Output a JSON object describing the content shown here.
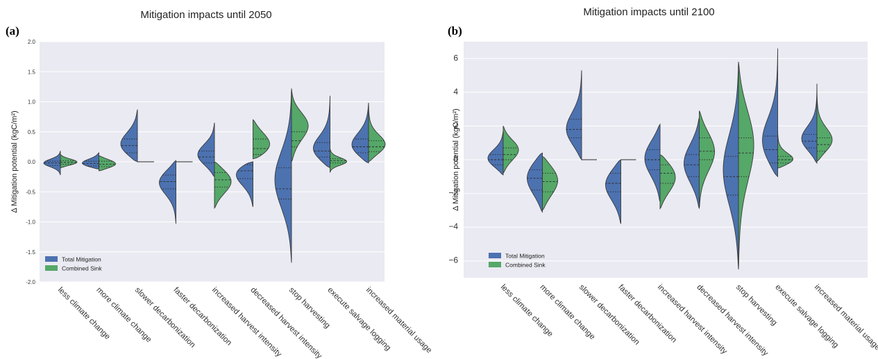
{
  "chart_data": [
    {
      "type": "violin",
      "panel_label": "(a)",
      "title": "Mitigation impacts until 2050",
      "ylabel": "Δ Mitigation potential (kgC/m²)",
      "ylim": [
        -2.0,
        2.0
      ],
      "yticks": [
        "2.0",
        "1.5",
        "1.0",
        "0.5",
        "0.0",
        "-0.5",
        "-1.0",
        "-1.5",
        "-2.0"
      ],
      "grid": true,
      "legend": "bottom-left",
      "categories": [
        "less climate change",
        "more climate change",
        "slower decarbonization",
        "faster decarbonization",
        "increased harvest intensity",
        "decreased harvest intensity",
        "stop harvesting",
        "execute salvage logging",
        "increased material usage"
      ],
      "series": [
        {
          "name": "Total Mitigation",
          "color": "#4c72b0",
          "min": [
            -0.22,
            -0.12,
            0.0,
            -1.03,
            -0.25,
            -0.75,
            -1.68,
            -0.1,
            -0.02
          ],
          "q1": [
            -0.06,
            -0.07,
            0.15,
            -0.45,
            -0.02,
            -0.28,
            -0.62,
            0.08,
            0.15
          ],
          "median": [
            -0.02,
            -0.03,
            0.27,
            -0.33,
            0.08,
            -0.15,
            -0.45,
            0.18,
            0.25
          ],
          "q3": [
            0.01,
            0.01,
            0.38,
            -0.22,
            0.18,
            -0.05,
            -0.1,
            0.32,
            0.38
          ],
          "max": [
            0.18,
            0.15,
            0.87,
            0.02,
            0.65,
            0.0,
            1.22,
            1.1,
            0.98
          ],
          "mode": [
            -0.02,
            -0.04,
            0.24,
            -0.3,
            0.1,
            -0.12,
            -0.3,
            0.15,
            0.22
          ]
        },
        {
          "name": "Combined Sink",
          "color": "#55a868",
          "min": [
            -0.1,
            -0.15,
            0.0,
            0.0,
            -0.77,
            0.05,
            0.0,
            -0.17,
            0.0
          ],
          "q1": [
            -0.04,
            -0.08,
            0.0,
            0.0,
            -0.42,
            0.12,
            0.25,
            -0.02,
            0.17
          ],
          "median": [
            -0.01,
            -0.04,
            0.0,
            0.0,
            -0.3,
            0.22,
            0.35,
            0.02,
            0.25
          ],
          "q3": [
            0.02,
            0.01,
            0.0,
            0.0,
            -0.18,
            0.38,
            0.5,
            0.05,
            0.35
          ],
          "max": [
            0.12,
            0.1,
            0.0,
            0.0,
            0.0,
            0.7,
            1.22,
            0.22,
            0.98
          ],
          "mode": [
            -0.01,
            -0.04,
            0.0,
            0.0,
            -0.3,
            0.22,
            0.62,
            0.0,
            0.25
          ]
        }
      ]
    },
    {
      "type": "violin",
      "panel_label": "(b)",
      "title": "Mitigation impacts until 2100",
      "ylabel": "Δ Mitigation potential (kgC/m²)",
      "ylim": [
        -7,
        7
      ],
      "yticks": [
        "6",
        "4",
        "2",
        "0",
        "−2",
        "−4",
        "−6"
      ],
      "grid": true,
      "legend": "bottom-left",
      "categories": [
        "less climate change",
        "more climate change",
        "slower decarbonization",
        "faster decarbonization",
        "increased harvest intensity",
        "decreased harvest intensity",
        "stop harvesting",
        "execute salvage logging",
        "increased material usage"
      ],
      "series": [
        {
          "name": "Total Mitigation",
          "color": "#4c72b0",
          "min": [
            -0.9,
            -3.1,
            0.0,
            -3.8,
            -2.5,
            -2.9,
            -6.5,
            -1.0,
            -0.2
          ],
          "q1": [
            -0.3,
            -1.8,
            1.3,
            -1.9,
            -0.6,
            -1.0,
            -2.1,
            -0.2,
            0.7
          ],
          "median": [
            0.0,
            -1.1,
            1.8,
            -1.4,
            0.0,
            -0.3,
            -1.0,
            0.6,
            1.1
          ],
          "q3": [
            0.3,
            -0.6,
            2.4,
            -0.8,
            0.6,
            0.3,
            0.2,
            1.4,
            1.5
          ],
          "max": [
            1.7,
            0.4,
            5.3,
            0.0,
            2.1,
            2.5,
            5.8,
            6.6,
            4.5
          ],
          "mode": [
            0.0,
            -0.9,
            1.6,
            -1.3,
            0.2,
            -0.2,
            -0.6,
            0.7,
            1.1
          ]
        },
        {
          "name": "Combined Sink",
          "color": "#55a868",
          "min": [
            -0.8,
            -3.0,
            0.0,
            0.0,
            -2.9,
            -2.9,
            -6.5,
            -0.5,
            -0.1
          ],
          "q1": [
            0.0,
            -1.9,
            0.0,
            0.0,
            -1.4,
            0.0,
            -1.0,
            -0.2,
            0.5
          ],
          "median": [
            0.3,
            -1.3,
            0.0,
            0.0,
            -0.8,
            0.5,
            0.4,
            0.0,
            0.9
          ],
          "q3": [
            0.7,
            -0.8,
            0.0,
            0.0,
            -0.3,
            1.3,
            1.3,
            0.2,
            1.3
          ],
          "max": [
            2.0,
            0.2,
            0.0,
            0.0,
            0.3,
            2.9,
            5.8,
            2.0,
            4.5
          ],
          "mode": [
            0.6,
            -1.1,
            0.0,
            0.0,
            -0.9,
            0.6,
            1.2,
            -0.1,
            1.0
          ]
        }
      ]
    }
  ]
}
